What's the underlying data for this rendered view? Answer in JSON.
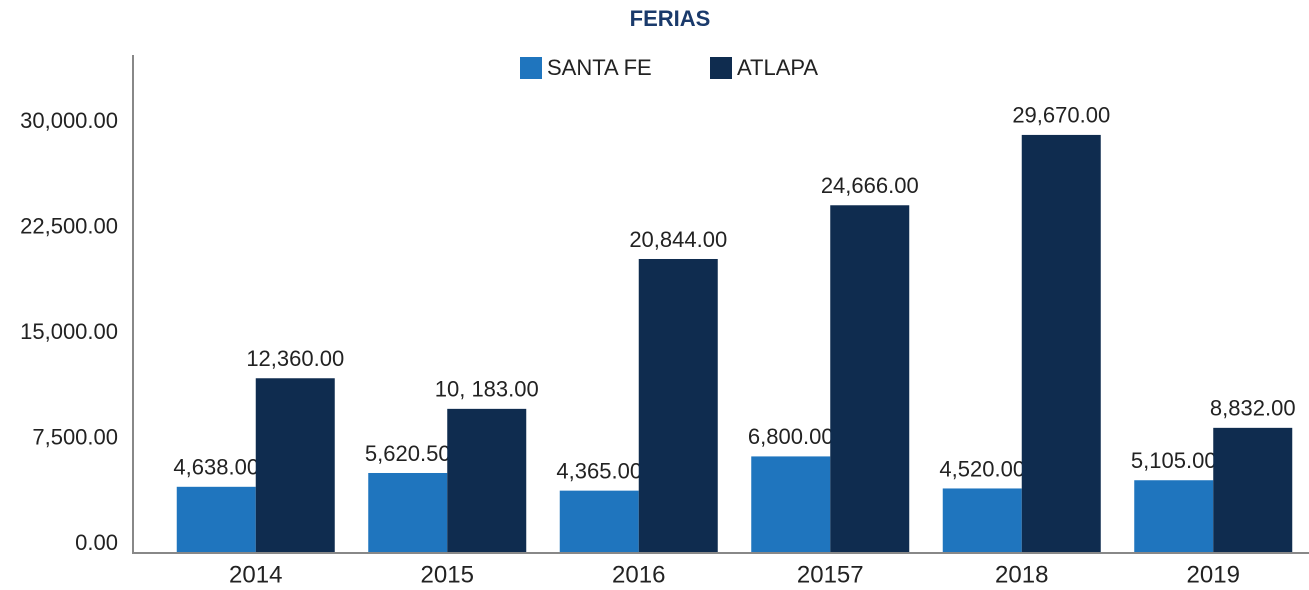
{
  "chart_data": {
    "type": "bar",
    "title": "FERIAS",
    "categories": [
      "2014",
      "2015",
      "2016",
      "20157",
      "2018",
      "2019"
    ],
    "series": [
      {
        "name": "SANTA FE",
        "color": "#1f75be",
        "values": [
          4638,
          5620.5,
          4365,
          6800,
          4520,
          5105
        ],
        "value_labels": [
          "4,638.00",
          "5,620.50",
          "4,365.00",
          "6,800.00",
          "4,520.00",
          "5,105.00"
        ]
      },
      {
        "name": "ATLAPA",
        "color": "#0f2c4f",
        "values": [
          12360,
          10183,
          20844,
          24666,
          29670,
          8832
        ],
        "value_labels": [
          "12,360.00",
          "10, 183.00",
          "20,844.00",
          "24,666.00",
          "29,670.00",
          "8,832.00"
        ]
      }
    ],
    "ylim": [
      0,
      35000
    ],
    "yticks": [
      {
        "value": 0,
        "label": "0.00"
      },
      {
        "value": 7500,
        "label": "7,500.00"
      },
      {
        "value": 15000,
        "label": "15,000.00"
      },
      {
        "value": 22500,
        "label": "22,500.00"
      },
      {
        "value": 30000,
        "label": "30,000.00"
      }
    ],
    "grid": false
  }
}
